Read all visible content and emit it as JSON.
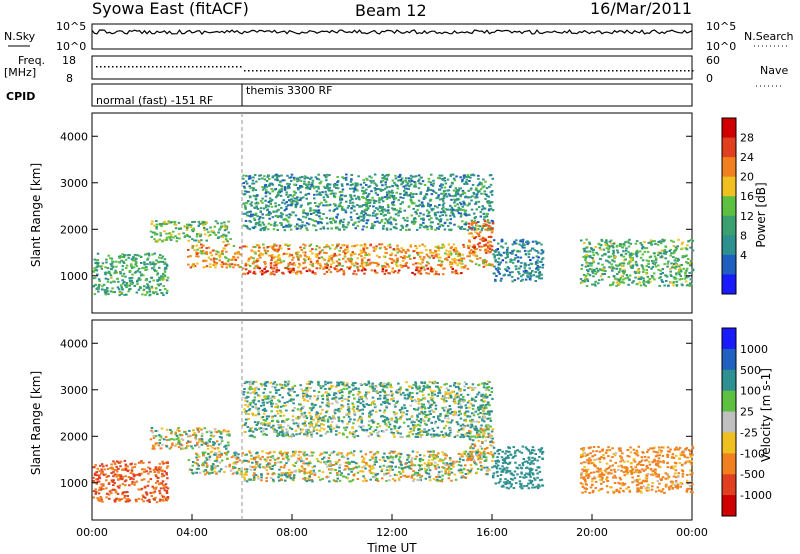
{
  "header": {
    "station": "Syowa East (fitACF)",
    "beam": "Beam 12",
    "date": "16/Mar/2011"
  },
  "top_panels": {
    "nsky": {
      "left_label": "N.Sky",
      "left_ticks": [
        "10^5",
        "10^0"
      ],
      "right_label": "N.Search",
      "right_ticks": [
        "10^5",
        "10^0"
      ]
    },
    "freq": {
      "left_label": "Freq.",
      "left_unit": "[MHz]",
      "left_ticks": [
        "18",
        "8"
      ],
      "right_label": "Nave",
      "right_ticks": [
        "60",
        "0"
      ]
    },
    "cpid": {
      "label": "CPID",
      "segments": [
        "normal (fast) -151 RF",
        "themis 3300 RF"
      ]
    }
  },
  "chart_data": [
    {
      "type": "heatmap",
      "panel": "power",
      "ylabel": "Slant Range [km]",
      "xlabel": "",
      "y_ticks": [
        1000,
        2000,
        3000,
        4000
      ],
      "ylim": [
        200,
        4500
      ],
      "xlim_hours": [
        0,
        24
      ],
      "colorbar": {
        "label": "Power [dB]",
        "ticks": [
          4,
          8,
          12,
          16,
          20,
          24,
          28
        ],
        "range": [
          0,
          30
        ],
        "colors": [
          "#1a1aff",
          "#1f5fc0",
          "#2e8f8f",
          "#3aa070",
          "#5dc040",
          "#f0c020",
          "#f08020",
          "#e04020",
          "#d00000"
        ]
      },
      "bands": [
        {
          "t_start": 0.0,
          "t_end": 3.0,
          "range_start": 600,
          "range_end": 1500,
          "value": 12
        },
        {
          "t_start": 2.3,
          "t_end": 5.5,
          "range_start": 1750,
          "range_end": 2200,
          "value": 14
        },
        {
          "t_start": 3.8,
          "t_end": 16.0,
          "range_start": 1200,
          "range_end": 1700,
          "value": 20
        },
        {
          "t_start": 6.0,
          "t_end": 15.0,
          "range_start": 1050,
          "range_end": 1200,
          "value": 24
        },
        {
          "t_start": 6.0,
          "t_end": 16.0,
          "range_start": 2000,
          "range_end": 3200,
          "value": 10
        },
        {
          "t_start": 15.0,
          "t_end": 16.0,
          "range_start": 1500,
          "range_end": 2200,
          "value": 22
        },
        {
          "t_start": 16.0,
          "t_end": 18.0,
          "range_start": 900,
          "range_end": 1800,
          "value": 8
        },
        {
          "t_start": 19.5,
          "t_end": 24.0,
          "range_start": 800,
          "range_end": 1800,
          "value": 13
        }
      ]
    },
    {
      "type": "heatmap",
      "panel": "velocity",
      "ylabel": "Slant Range [km]",
      "xlabel": "Time UT",
      "x_ticks": [
        "00:00",
        "04:00",
        "08:00",
        "12:00",
        "16:00",
        "20:00",
        "00:00"
      ],
      "y_ticks": [
        1000,
        2000,
        3000,
        4000
      ],
      "ylim": [
        200,
        4500
      ],
      "xlim_hours": [
        0,
        24
      ],
      "colorbar": {
        "label": "Velocity [m s-1]",
        "ticks": [
          "1000",
          "500",
          "100",
          "25",
          "-25",
          "-100",
          "-500",
          "-1000"
        ],
        "colors": [
          "#1a1aff",
          "#2060c0",
          "#2e9090",
          "#5dc040",
          "#c0c0c0",
          "#f0c020",
          "#f08020",
          "#e04020",
          "#d00000"
        ]
      },
      "bands": [
        {
          "t_start": 0.0,
          "t_end": 3.0,
          "range_start": 600,
          "range_end": 1500,
          "value": -500
        },
        {
          "t_start": 2.3,
          "t_end": 5.5,
          "range_start": 1750,
          "range_end": 2200,
          "value": 0
        },
        {
          "t_start": 3.8,
          "t_end": 16.0,
          "range_start": 1200,
          "range_end": 1700,
          "value": 0
        },
        {
          "t_start": 6.0,
          "t_end": 15.0,
          "range_start": 1050,
          "range_end": 1200,
          "value": 0
        },
        {
          "t_start": 6.0,
          "t_end": 16.0,
          "range_start": 2000,
          "range_end": 3200,
          "value": 100
        },
        {
          "t_start": 15.0,
          "t_end": 16.0,
          "range_start": 1500,
          "range_end": 2200,
          "value": 0
        },
        {
          "t_start": 16.0,
          "t_end": 18.0,
          "range_start": 900,
          "range_end": 1800,
          "value": 300
        },
        {
          "t_start": 19.5,
          "t_end": 24.0,
          "range_start": 800,
          "range_end": 1800,
          "value": -200
        }
      ]
    }
  ]
}
